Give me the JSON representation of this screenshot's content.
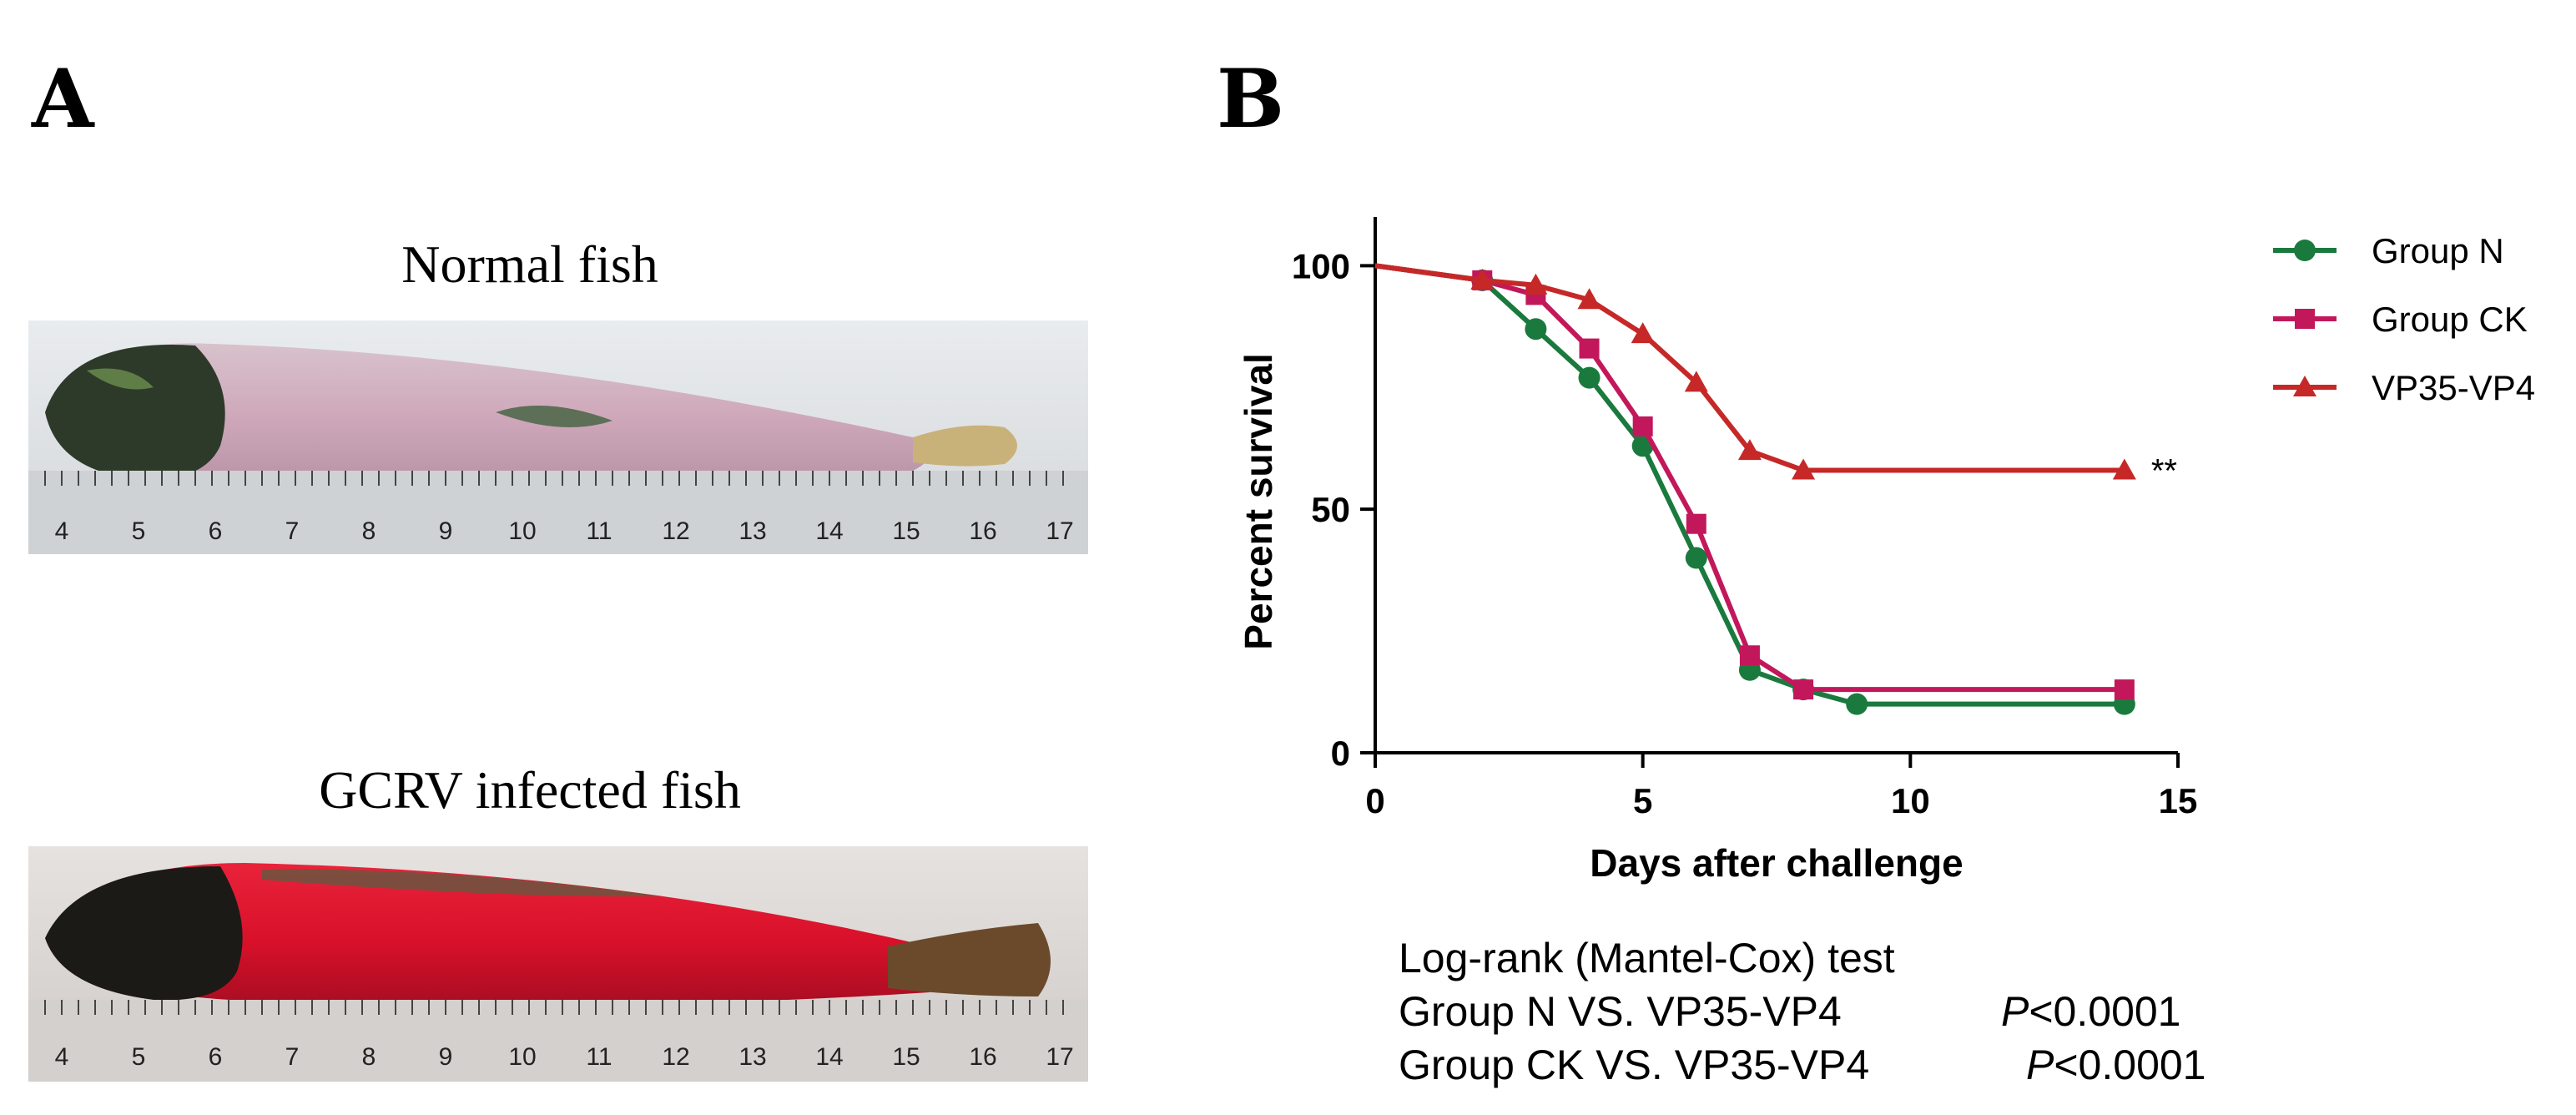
{
  "panel_a": {
    "label": "A",
    "normal_caption": "Normal fish",
    "infected_caption": "GCRV infected fish",
    "ruler_ticks": [
      "4",
      "5",
      "6",
      "7",
      "8",
      "9",
      "10",
      "11",
      "12",
      "13",
      "14",
      "15",
      "16",
      "17"
    ]
  },
  "panel_b": {
    "label": "B",
    "significance": "**",
    "stats": {
      "title": "Log-rank (Mantel-Cox) test",
      "rows": [
        {
          "label": "Group N VS. VP35-VP4",
          "p_symbol": "P",
          "p_value": "<0.0001"
        },
        {
          "label": "Group CK VS. VP35-VP4",
          "p_symbol": "P",
          "p_value": "<0.0001"
        }
      ]
    }
  },
  "colors": {
    "group_n": "#1a7a3e",
    "group_ck": "#c2185b",
    "vp35_vp4": "#c62828"
  },
  "chart_data": {
    "type": "line",
    "title": "",
    "xlabel": "Days after challenge",
    "ylabel": "Percent survival",
    "xlim": [
      0,
      15
    ],
    "ylim": [
      0,
      110
    ],
    "xticks": [
      0,
      5,
      10,
      15
    ],
    "yticks": [
      0,
      50,
      100
    ],
    "legend_position": "top-right",
    "series": [
      {
        "name": "Group N",
        "marker": "circle",
        "x": [
          0,
          2,
          3,
          4,
          5,
          6,
          7,
          8,
          9,
          14
        ],
        "y": [
          100,
          97,
          87,
          77,
          63,
          40,
          17,
          13,
          10,
          10
        ]
      },
      {
        "name": "Group CK",
        "marker": "square",
        "x": [
          0,
          2,
          3,
          4,
          5,
          6,
          7,
          8,
          14
        ],
        "y": [
          100,
          97,
          94,
          83,
          67,
          47,
          20,
          13,
          13
        ]
      },
      {
        "name": "VP35-VP4",
        "marker": "triangle",
        "x": [
          0,
          2,
          3,
          4,
          5,
          6,
          7,
          8,
          14
        ],
        "y": [
          100,
          97,
          96,
          93,
          86,
          76,
          62,
          58,
          58
        ]
      }
    ]
  }
}
